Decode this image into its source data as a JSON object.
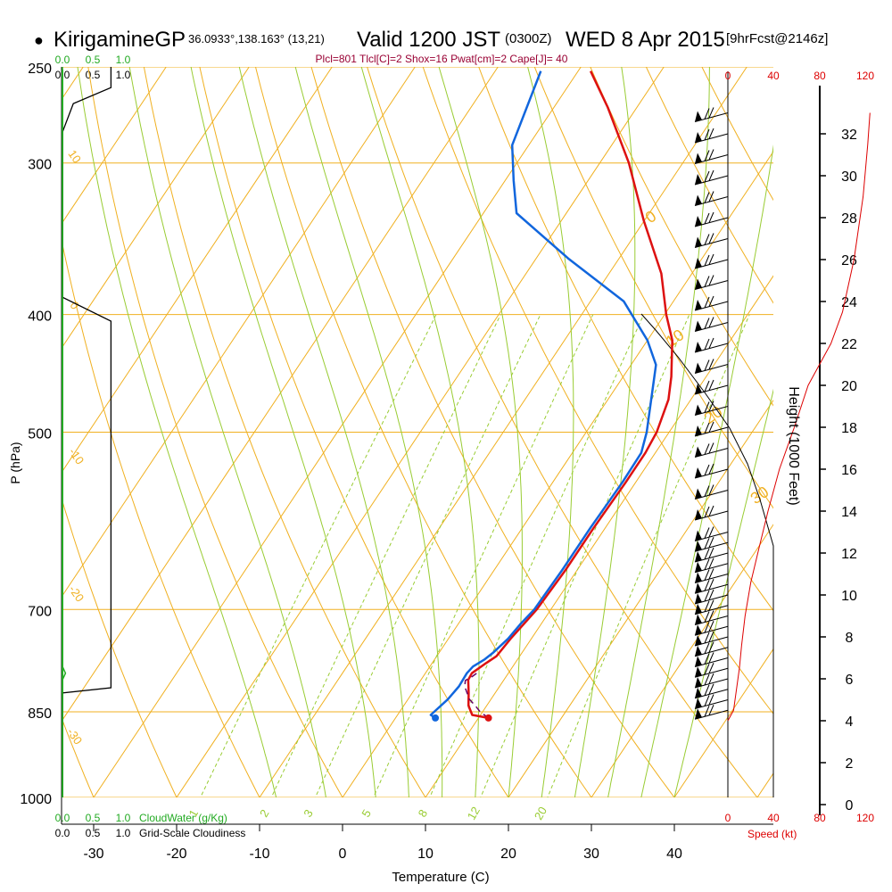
{
  "header": {
    "dot": "●",
    "station": "KirigamineGP",
    "coords": "36.0933°,138.163° (13,21)",
    "valid": "Valid 1200 JST",
    "utc": "(0300Z)",
    "date": "WED 8 Apr 2015",
    "forecast": "[9hrFcst@2146z]"
  },
  "indices": "Plcl=801 Tlcl[C]=2 Shox=16 Pwat[cm]=2 Cape[J]= 40",
  "cloud_panel": {
    "top_green_ticks": [
      "0.0",
      "0.5",
      "1.0"
    ],
    "top_black_ticks": [
      "0.0",
      "0.5",
      "1.0"
    ],
    "bottom_green_ticks": [
      "0.0",
      "0.5",
      "1.0"
    ],
    "bottom_green_label": "CloudWater (g/Kg)",
    "bottom_black_ticks": [
      "0.0",
      "0.5",
      "1.0"
    ],
    "bottom_black_label": "Grid-Scale Cloudiness"
  },
  "speed_scale": {
    "ticks": [
      "0",
      "40",
      "80",
      "120"
    ],
    "label": "Speed (kt)"
  },
  "colors": {
    "isobar": "#f0b020",
    "isotherm": "#f0b020",
    "dry_adiabat": "#f0b020",
    "moist_adiabat": "#99cc33",
    "mixing_ratio": "#99cc33",
    "temperature": "#dd1111",
    "dewpoint": "#1166dd",
    "parcel": "#660066",
    "cloud": "#22aa22",
    "speed": "#dd0000"
  },
  "chart_data": {
    "type": "line",
    "subtype": "skew-T log-P sounding",
    "xlabel": "Temperature (C)",
    "ylabel": "P (hPa)",
    "right_label": "Height (1000 Feet)",
    "x_ticks": [
      -30,
      -20,
      -10,
      0,
      10,
      20,
      30,
      40
    ],
    "p_ticks": [
      250,
      300,
      400,
      500,
      700,
      850,
      1000
    ],
    "height_ticks": [
      0,
      2,
      4,
      6,
      8,
      10,
      12,
      14,
      16,
      18,
      20,
      22,
      24,
      26,
      28,
      30,
      32
    ],
    "isotherm_labels": [
      0,
      10,
      20,
      30
    ],
    "dry_adiabat_labels": [
      10,
      0,
      -10,
      -20,
      -30
    ],
    "mixing_ratio_labels": [
      1,
      2,
      3,
      5,
      8,
      12,
      20
    ],
    "series": [
      {
        "name": "temperature",
        "points": [
          [
            11.2,
            860
          ],
          [
            9.0,
            855
          ],
          [
            7.8,
            840
          ],
          [
            6.8,
            820
          ],
          [
            5.7,
            800
          ],
          [
            5.6,
            790
          ],
          [
            6.5,
            775
          ],
          [
            7.2,
            765
          ],
          [
            7.5,
            740
          ],
          [
            7.9,
            720
          ],
          [
            8.3,
            700
          ],
          [
            8.6,
            650
          ],
          [
            8.6,
            600
          ],
          [
            8.8,
            550
          ],
          [
            8.8,
            520
          ],
          [
            8.5,
            500
          ],
          [
            7.3,
            470
          ],
          [
            5.8,
            450
          ],
          [
            3.0,
            420
          ],
          [
            0.2,
            400
          ],
          [
            -3.7,
            370
          ],
          [
            -10.0,
            335
          ],
          [
            -16.5,
            300
          ],
          [
            -23.5,
            270
          ],
          [
            -28.5,
            252
          ]
        ]
      },
      {
        "name": "dewpoint",
        "points": [
          [
            4.8,
            860
          ],
          [
            4.0,
            855
          ],
          [
            4.8,
            830
          ],
          [
            5.1,
            810
          ],
          [
            5.0,
            790
          ],
          [
            5.2,
            780
          ],
          [
            6.0,
            770
          ],
          [
            6.5,
            760
          ],
          [
            7.2,
            740
          ],
          [
            7.5,
            720
          ],
          [
            8.0,
            700
          ],
          [
            8.2,
            650
          ],
          [
            8.2,
            600
          ],
          [
            8.4,
            550
          ],
          [
            8.3,
            520
          ],
          [
            7.3,
            500
          ],
          [
            4.5,
            460
          ],
          [
            3.0,
            440
          ],
          [
            0.0,
            420
          ],
          [
            -6.0,
            390
          ],
          [
            -16.0,
            360
          ],
          [
            -26.0,
            330
          ],
          [
            -29.0,
            310
          ],
          [
            -32.0,
            290
          ],
          [
            -34.5,
            252
          ]
        ]
      },
      {
        "name": "parcel",
        "points": [
          [
            11.2,
            860
          ],
          [
            9.7,
            850
          ],
          [
            8.6,
            840
          ],
          [
            7.4,
            830
          ],
          [
            6.6,
            820
          ],
          [
            5.8,
            810
          ],
          [
            5.4,
            801
          ],
          [
            5.9,
            795
          ],
          [
            6.2,
            790
          ]
        ]
      }
    ],
    "surface_temperature": 11.2,
    "surface_dewpoint": 4.8,
    "surface_pressure": 860,
    "speed_profile_kt": [
      [
        0,
        4.0
      ],
      [
        5,
        4.5
      ],
      [
        10,
        6.5
      ],
      [
        12,
        7.6
      ],
      [
        15,
        9.0
      ],
      [
        20,
        10.6
      ],
      [
        27,
        12.2
      ],
      [
        35,
        14.0
      ],
      [
        45,
        16.0
      ],
      [
        58,
        18.0
      ],
      [
        70,
        20.0
      ],
      [
        80,
        21.0
      ],
      [
        90,
        22.0
      ],
      [
        100,
        23.5
      ],
      [
        110,
        26.0
      ],
      [
        118,
        29.0
      ],
      [
        122,
        31.5
      ],
      [
        124,
        33.0
      ]
    ],
    "wind_barb_heights": [
      4.5,
      5.0,
      5.5,
      6.0,
      6.5,
      7.0,
      7.5,
      8.0,
      8.5,
      9.0,
      9.5,
      10.0,
      10.5,
      11.0,
      11.5,
      12.0,
      12.5,
      13.0,
      14.0,
      15.0,
      16.0,
      17.0,
      18.0,
      19.0,
      20.0,
      21.0,
      22.0,
      23.0,
      24.0,
      25.0,
      26.0,
      27.0,
      28.0,
      29.0,
      30.0,
      31.0,
      32.0,
      33.0
    ],
    "cloudiness_profile": [
      [
        0.0,
        1000
      ],
      [
        0.0,
        820
      ],
      [
        0.8,
        812
      ],
      [
        0.8,
        405
      ],
      [
        0.0,
        387
      ],
      [
        0.0,
        283
      ],
      [
        0.18,
        268
      ],
      [
        0.8,
        260
      ],
      [
        0.8,
        250
      ]
    ],
    "cloudwater_profile": [
      [
        0.0,
        1000
      ],
      [
        0.0,
        800
      ],
      [
        0.05,
        790
      ],
      [
        0.0,
        780
      ],
      [
        0.0,
        250
      ]
    ]
  }
}
